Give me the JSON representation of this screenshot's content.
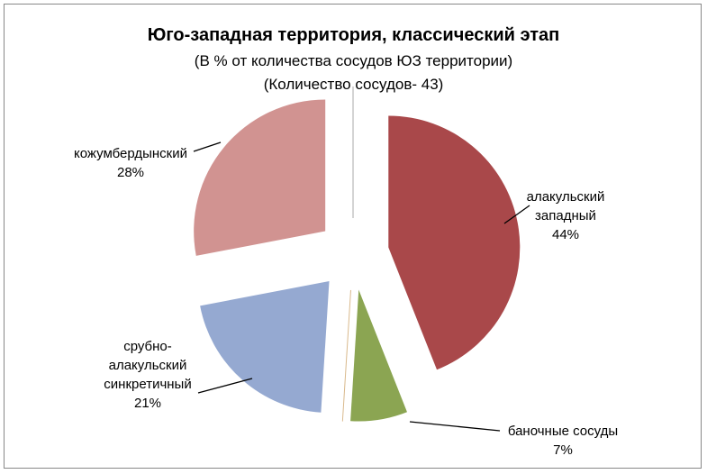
{
  "chart_data": {
    "type": "pie",
    "title": "Юго-западная территория, классический этап",
    "subtitle_1": "(В % от количества сосудов ЮЗ территории)",
    "subtitle_2": "(Количество сосудов- 43)",
    "exploded": true,
    "slices": [
      {
        "name": "алакульский западный",
        "label_lines": [
          "алакульский",
          "западный"
        ],
        "value": 44,
        "pct_label": "44%",
        "color": "#A9484A"
      },
      {
        "name": "баночные сосуды",
        "label_lines": [
          "баночные сосуды"
        ],
        "value": 7,
        "pct_label": "7%",
        "color": "#8BA552"
      },
      {
        "name": "",
        "label_lines": [],
        "value": 0,
        "pct_label": "",
        "color": "#D9B98C"
      },
      {
        "name": "срубно-алакульский синкретичный",
        "label_lines": [
          "срубно-",
          "алакульский",
          "синкретичный"
        ],
        "value": 21,
        "pct_label": "21%",
        "color": "#95A9D1"
      },
      {
        "name": "кожумбердынский",
        "label_lines": [
          "кожумбердынский"
        ],
        "value": 28,
        "pct_label": "28%",
        "color": "#D19391"
      },
      {
        "name": "",
        "label_lines": [],
        "value": 0,
        "pct_label": "",
        "color": "#AAAAAA"
      }
    ]
  }
}
